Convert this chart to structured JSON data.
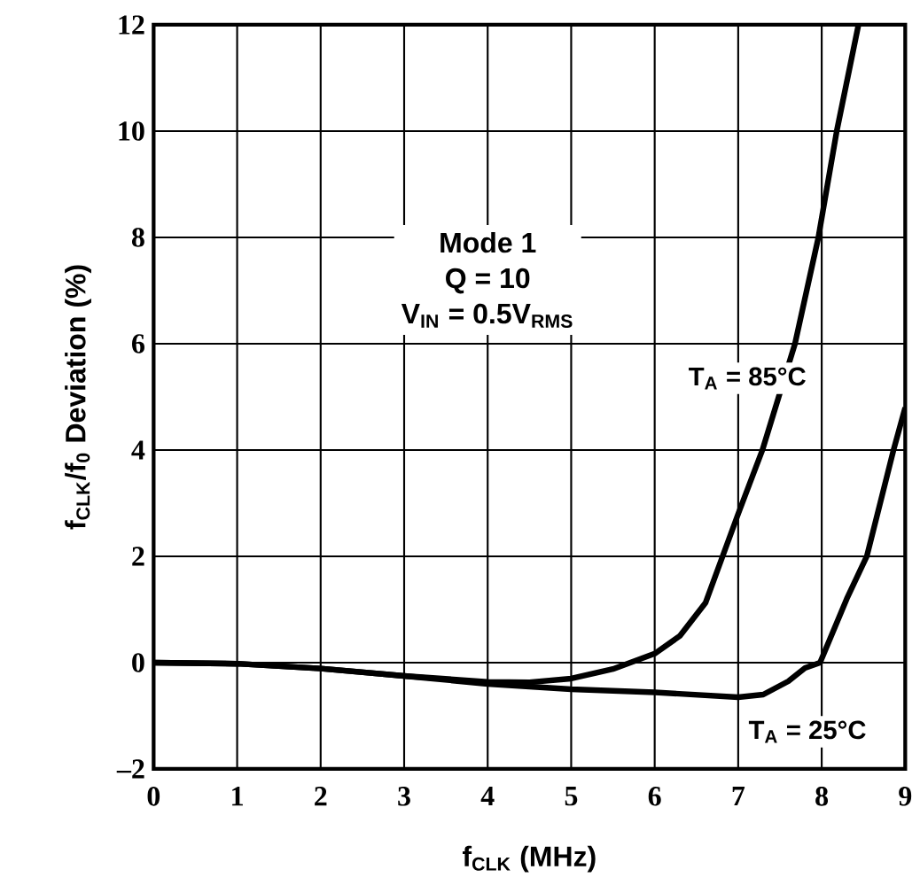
{
  "chart_data": {
    "type": "line",
    "xlabel": "f$_{CLK}$ (MHz)",
    "ylabel": "f$_{CLK}$/f$_{0}$ Deviation (%)",
    "xlim": [
      0,
      9
    ],
    "ylim": [
      -2,
      12
    ],
    "xticks": [
      0,
      1,
      2,
      3,
      4,
      5,
      6,
      7,
      8,
      9
    ],
    "yticks": [
      {
        "value": -2,
        "label": "–2"
      },
      0,
      2,
      4,
      6,
      8,
      10,
      12
    ],
    "grid": true,
    "marker": "none",
    "line_style": "solid",
    "x": [
      0,
      1,
      2,
      3,
      4,
      4.5,
      5,
      5.5,
      6,
      6.3,
      6.61,
      7,
      7.29,
      7.68,
      7.96,
      8.18,
      8.44
    ],
    "series": [
      {
        "color": "#000000",
        "values": [
          0,
          -0.02,
          -0.11,
          -0.25,
          -0.36,
          -0.37,
          -0.3,
          -0.12,
          0.17,
          0.5,
          1.13,
          2.8,
          4,
          6,
          8,
          10,
          12
        ]
      },
      {
        "color": "#000000",
        "x": [
          0,
          1,
          2,
          3,
          4,
          5,
          6,
          7,
          7.3,
          7.6,
          7.8,
          7.98,
          8.3,
          8.54,
          8.86,
          9
        ],
        "values": [
          0,
          -0.02,
          -0.11,
          -0.25,
          -0.4,
          -0.5,
          -0.56,
          -0.65,
          -0.6,
          -0.35,
          -0.1,
          0,
          1.2,
          2,
          4,
          4.8
        ]
      }
    ],
    "annotations": [
      "Mode 1",
      "Q = 10",
      "V$_{IN}$ = 0.5V$_{RMS}$",
      "T$_{A}$ = 85°C",
      "T$_{A}$ = 25°C"
    ]
  }
}
